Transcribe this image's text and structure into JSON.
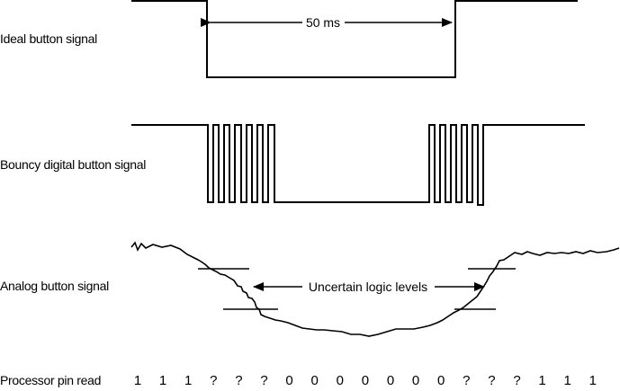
{
  "labels": {
    "ideal": "Ideal button signal",
    "bouncy": "Bouncy digital button signal",
    "analog": "Analog button signal",
    "pin_read": "Processor pin read"
  },
  "annotations": {
    "duration": "50 ms",
    "uncertain": "Uncertain logic levels"
  },
  "pin_reads": [
    "1",
    "1",
    "1",
    "?",
    "?",
    "?",
    "0",
    "0",
    "0",
    "0",
    "0",
    "0",
    "0",
    "?",
    "?",
    "?",
    "1",
    "1",
    "1"
  ]
}
